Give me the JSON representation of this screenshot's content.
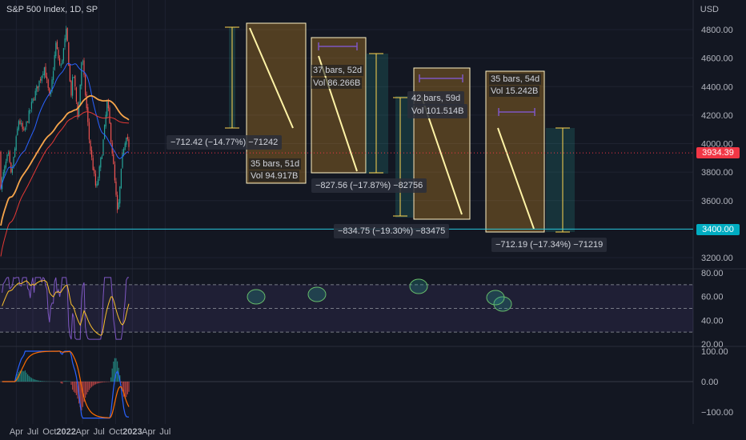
{
  "header": {
    "title": "S&P 500 Index, 1D, SP",
    "currency": "USD"
  },
  "price_tags": {
    "current": "3934.39",
    "target": "3400.00"
  },
  "colors": {
    "background": "#131722",
    "up": "#26a69a",
    "down": "#ef5350",
    "ma_fast": "#2962ff",
    "ma_mid": "#f7a54b",
    "ma_slow": "#e53935",
    "target_line": "#26c6da",
    "projection": "#fff3a6",
    "rsi": "#7e57c2",
    "rsi_signal": "#fbc02d",
    "macd": "#2962ff",
    "macd_signal": "#ff6d00"
  },
  "annotations": {
    "d1_stats": "−712.42 (−14.77%) −71242",
    "d1_bars": "35 bars, 51d",
    "d1_vol": "Vol 94.917B",
    "d2_bars": "37 bars, 52d",
    "d2_vol": "Vol 86.266B",
    "d2_stats": "−827.56 (−17.87%) −82756",
    "d3_bars": "42 bars, 59d",
    "d3_vol": "Vol 101.514B",
    "d3_stats": "−834.75 (−19.30%) −83475",
    "d4_bars": "35 bars, 54d",
    "d4_vol": "Vol 15.242B",
    "d4_stats": "−712.19 (−17.34%) −71219"
  },
  "chart_data": [
    {
      "type": "candlestick",
      "title": "S&P 500 Index, 1D, SP",
      "yunit": "USD",
      "ylim": [
        3150,
        4900
      ],
      "y_ticks": [
        "4800.00",
        "4600.00",
        "4400.00",
        "4200.00",
        "4000.00",
        "3800.00",
        "3600.00",
        "3400.00",
        "3200.00"
      ],
      "x_ticks": [
        "Apr",
        "Jul",
        "Oct",
        "2022",
        "Apr",
        "Jul",
        "Oct",
        "2023",
        "Apr",
        "Jul"
      ],
      "price_path": [
        {
          "x": "2021-01-04",
          "y": 3700
        },
        {
          "x": "2021-02-15",
          "y": 3930
        },
        {
          "x": "2021-03-04",
          "y": 3770
        },
        {
          "x": "2021-04-15",
          "y": 4170
        },
        {
          "x": "2021-05-12",
          "y": 4070
        },
        {
          "x": "2021-06-30",
          "y": 4300
        },
        {
          "x": "2021-08-31",
          "y": 4530
        },
        {
          "x": "2021-09-02",
          "y": 4540
        },
        {
          "x": "2021-10-04",
          "y": 4300
        },
        {
          "x": "2021-11-05",
          "y": 4700
        },
        {
          "x": "2021-12-01",
          "y": 4520
        },
        {
          "x": "2022-01-03",
          "y": 4800
        },
        {
          "x": "2022-01-27",
          "y": 4330
        },
        {
          "x": "2022-02-10",
          "y": 4500
        },
        {
          "x": "2022-03-08",
          "y": 4170
        },
        {
          "x": "2022-03-29",
          "y": 4630
        },
        {
          "x": "2022-05-10",
          "y": 4000
        },
        {
          "x": "2022-06-16",
          "y": 3670
        },
        {
          "x": "2022-07-20",
          "y": 3960
        },
        {
          "x": "2022-08-16",
          "y": 4300
        },
        {
          "x": "2022-09-13",
          "y": 3930
        },
        {
          "x": "2022-10-12",
          "y": 3490
        },
        {
          "x": "2022-11-10",
          "y": 3950
        },
        {
          "x": "2022-12-01",
          "y": 4080
        },
        {
          "x": "2022-12-16",
          "y": 3934
        }
      ],
      "moving_averages_visible": 3,
      "drawdowns": [
        {
          "bars": 35,
          "days": 51,
          "volume": "94.917B",
          "change": -712.42,
          "percent": -14.77
        },
        {
          "bars": 37,
          "days": 52,
          "volume": "86.266B",
          "change": -827.56,
          "percent": -17.87
        },
        {
          "bars": 42,
          "days": 59,
          "volume": "101.514B",
          "change": -834.75,
          "percent": -19.3
        },
        {
          "bars": 35,
          "days": 54,
          "volume": "15.242B",
          "change": -712.19,
          "percent": -17.34
        }
      ],
      "projection": {
        "from": 4100,
        "to": 3400
      },
      "horizontal_line": 3400,
      "last_price": 3934.39
    },
    {
      "type": "line",
      "indicator": "RSI",
      "ylim": [
        20,
        80
      ],
      "y_ticks": [
        "80.00",
        "60.00",
        "40.00",
        "20.00"
      ],
      "band": [
        30,
        70
      ],
      "highlighted_peaks": 5
    },
    {
      "type": "line",
      "indicator": "MACD",
      "ylim": [
        -130,
        110
      ],
      "y_ticks": [
        "100.00",
        "0.00",
        "−100.00"
      ]
    }
  ]
}
